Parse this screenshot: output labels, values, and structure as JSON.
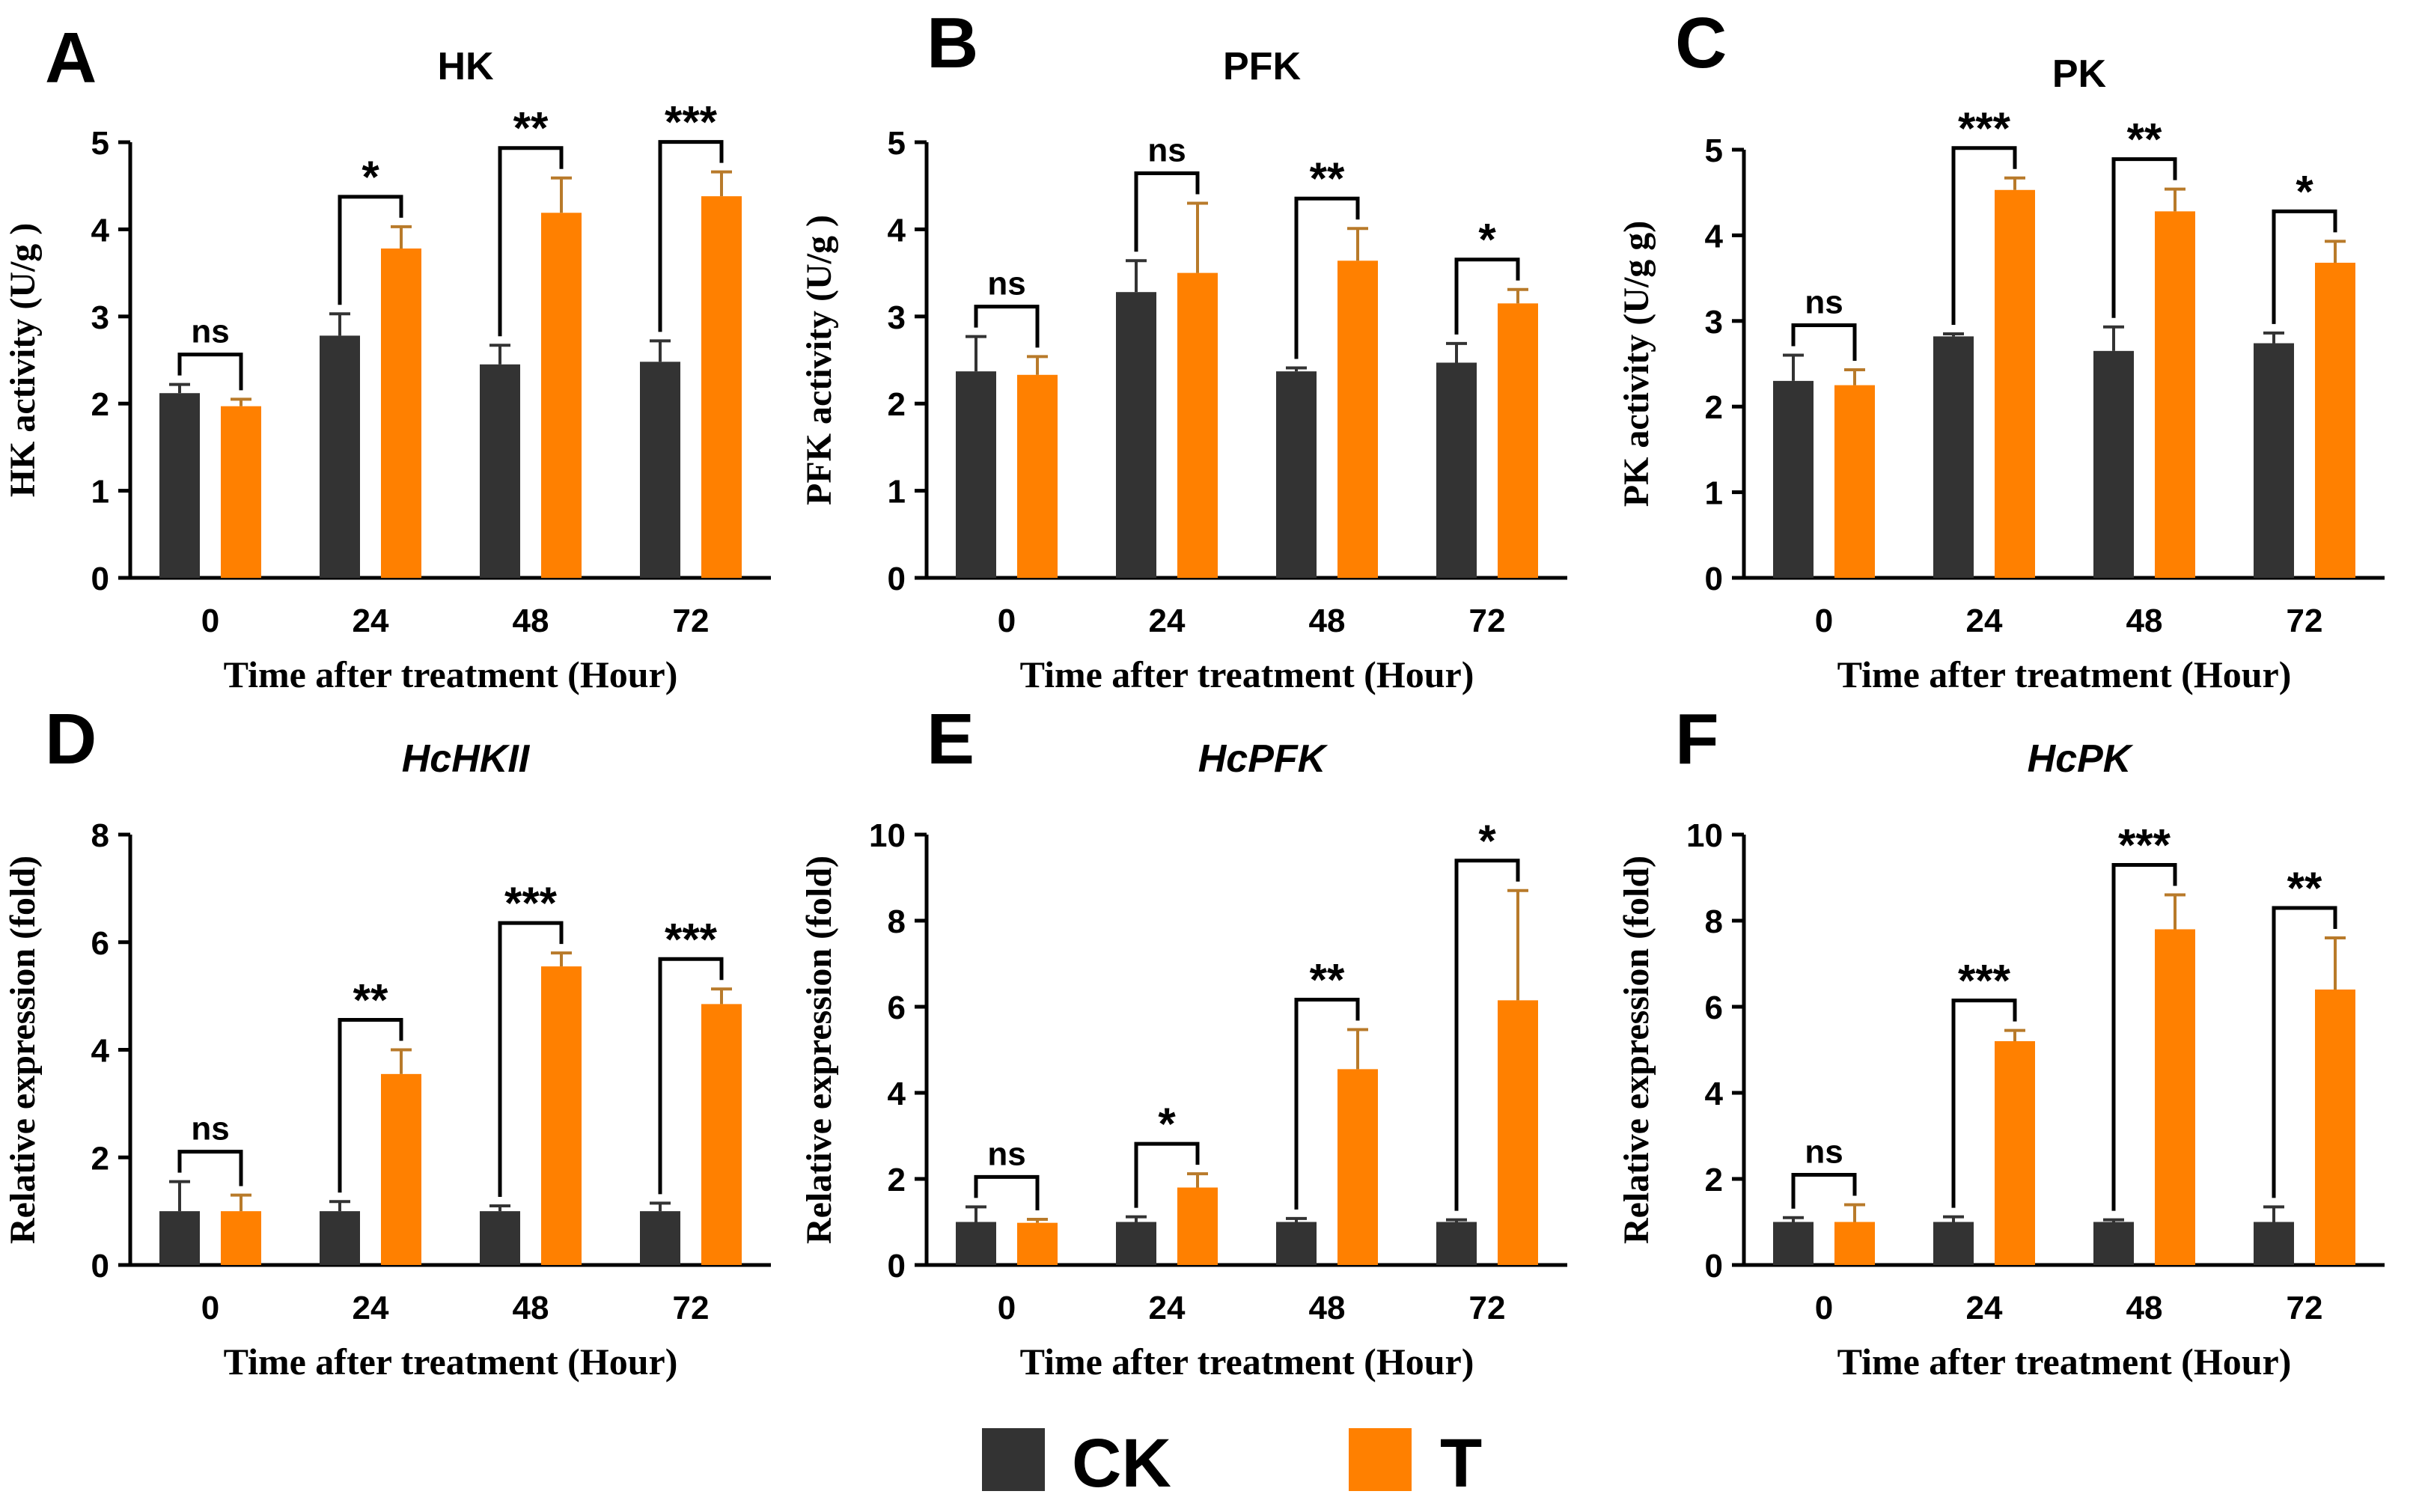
{
  "figure": {
    "legend": [
      {
        "label": "CK",
        "color": "#333333"
      },
      {
        "label": "T",
        "color": "#ff8000"
      }
    ]
  },
  "chart_data": [
    {
      "panel": "A",
      "type": "bar",
      "title": "HK",
      "title_italic": false,
      "xlabel": "Time after treatment (Hour)",
      "ylabel": "HK activity (U/g )",
      "categories": [
        "0",
        "24",
        "48",
        "72"
      ],
      "ylim": [
        0,
        5
      ],
      "yticks": [
        0,
        1,
        2,
        3,
        4,
        5
      ],
      "series": [
        {
          "name": "CK",
          "values": [
            2.12,
            2.78,
            2.45,
            2.48
          ],
          "errors": [
            0.1,
            0.25,
            0.22,
            0.24
          ]
        },
        {
          "name": "T",
          "values": [
            1.97,
            3.78,
            4.19,
            4.38
          ],
          "errors": [
            0.08,
            0.25,
            0.4,
            0.28
          ]
        }
      ],
      "significance": [
        "ns",
        "*",
        "**",
        "***"
      ]
    },
    {
      "panel": "B",
      "type": "bar",
      "title": "PFK",
      "title_italic": false,
      "xlabel": "Time after treatment (Hour)",
      "ylabel": "PFK activity (U/g )",
      "categories": [
        "0",
        "24",
        "48",
        "72"
      ],
      "ylim": [
        0,
        5
      ],
      "yticks": [
        0,
        1,
        2,
        3,
        4,
        5
      ],
      "series": [
        {
          "name": "CK",
          "values": [
            2.37,
            3.28,
            2.37,
            2.47
          ],
          "errors": [
            0.4,
            0.36,
            0.04,
            0.22
          ]
        },
        {
          "name": "T",
          "values": [
            2.33,
            3.5,
            3.64,
            3.15
          ],
          "errors": [
            0.21,
            0.8,
            0.37,
            0.16
          ]
        }
      ],
      "significance": [
        "ns",
        "ns",
        "**",
        "*"
      ]
    },
    {
      "panel": "C",
      "type": "bar",
      "title": "PK",
      "title_italic": false,
      "xlabel": "Time after treatment (Hour)",
      "ylabel": "PK activity (U/g g)",
      "categories": [
        "0",
        "24",
        "48",
        "72"
      ],
      "ylim": [
        0,
        5
      ],
      "yticks": [
        0,
        1,
        2,
        3,
        4,
        5
      ],
      "series": [
        {
          "name": "CK",
          "values": [
            2.3,
            2.82,
            2.65,
            2.74
          ],
          "errors": [
            0.3,
            0.03,
            0.28,
            0.12
          ]
        },
        {
          "name": "T",
          "values": [
            2.25,
            4.53,
            4.28,
            3.68
          ],
          "errors": [
            0.18,
            0.14,
            0.26,
            0.25
          ]
        }
      ],
      "significance": [
        "ns",
        "***",
        "**",
        "*"
      ]
    },
    {
      "panel": "D",
      "type": "bar",
      "title": "HcHKII",
      "title_italic": true,
      "xlabel": "Time after treatment (Hour)",
      "ylabel": "Relative expression (fold)",
      "categories": [
        "0",
        "24",
        "48",
        "72"
      ],
      "ylim": [
        0,
        8
      ],
      "yticks": [
        0,
        2,
        4,
        6,
        8
      ],
      "series": [
        {
          "name": "CK",
          "values": [
            1.0,
            1.0,
            1.0,
            1.0
          ],
          "errors": [
            0.55,
            0.18,
            0.1,
            0.15
          ]
        },
        {
          "name": "T",
          "values": [
            1.0,
            3.55,
            5.55,
            4.85
          ],
          "errors": [
            0.3,
            0.45,
            0.25,
            0.28
          ]
        }
      ],
      "significance": [
        "ns",
        "**",
        "***",
        "***"
      ]
    },
    {
      "panel": "E",
      "type": "bar",
      "title": "HcPFK",
      "title_italic": true,
      "xlabel": "Time after treatment (Hour)",
      "ylabel": "Relative expression (fold)",
      "categories": [
        "0",
        "24",
        "48",
        "72"
      ],
      "ylim": [
        0,
        10
      ],
      "yticks": [
        0,
        2,
        4,
        6,
        8,
        10
      ],
      "series": [
        {
          "name": "CK",
          "values": [
            1.0,
            1.0,
            1.0,
            1.0
          ],
          "errors": [
            0.35,
            0.12,
            0.08,
            0.05
          ]
        },
        {
          "name": "T",
          "values": [
            0.98,
            1.8,
            4.55,
            6.15
          ],
          "errors": [
            0.08,
            0.32,
            0.92,
            2.55
          ]
        }
      ],
      "significance": [
        "ns",
        "*",
        "**",
        "*"
      ]
    },
    {
      "panel": "F",
      "type": "bar",
      "title": "HcPK",
      "title_italic": true,
      "xlabel": "Time after treatment (Hour)",
      "ylabel": "Relative expression (fold)",
      "categories": [
        "0",
        "24",
        "48",
        "72"
      ],
      "ylim": [
        0,
        10
      ],
      "yticks": [
        0,
        2,
        4,
        6,
        8,
        10
      ],
      "series": [
        {
          "name": "CK",
          "values": [
            1.0,
            1.0,
            1.0,
            1.0
          ],
          "errors": [
            0.1,
            0.12,
            0.05,
            0.35
          ]
        },
        {
          "name": "T",
          "values": [
            1.0,
            5.2,
            7.8,
            6.4
          ],
          "errors": [
            0.4,
            0.25,
            0.8,
            1.2
          ]
        }
      ],
      "significance": [
        "ns",
        "***",
        "***",
        "**"
      ]
    }
  ]
}
